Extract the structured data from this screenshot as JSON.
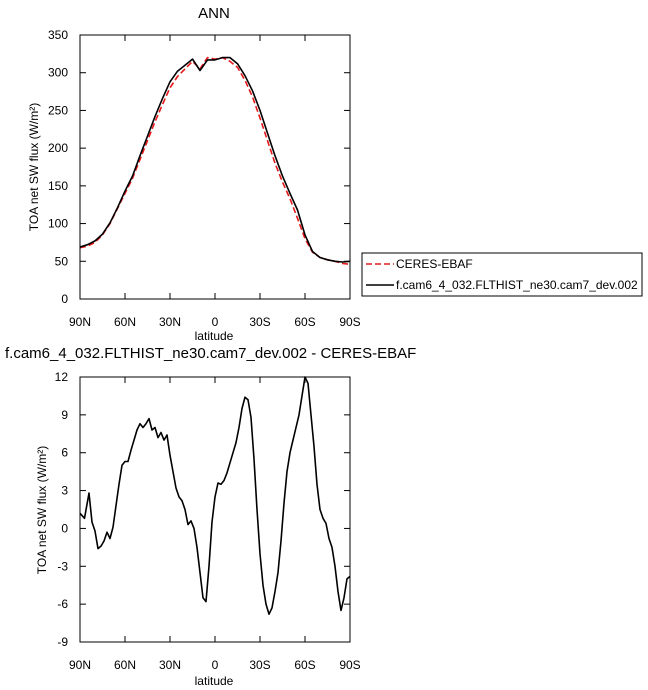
{
  "chart_data": [
    {
      "type": "line",
      "title": "ANN",
      "xlabel": "latitude",
      "ylabel": "TOA net SW flux (W/m²)",
      "xlim": [
        90,
        -90
      ],
      "ylim": [
        0,
        350
      ],
      "xticks": [
        90,
        60,
        30,
        0,
        -30,
        -60,
        -90
      ],
      "xtick_labels": [
        "90N",
        "60N",
        "30N",
        "0",
        "30S",
        "60S",
        "90S"
      ],
      "yticks": [
        0,
        50,
        100,
        150,
        200,
        250,
        300,
        350
      ],
      "ytick_labels": [
        "0",
        "50",
        "100",
        "150",
        "200",
        "250",
        "300",
        "350"
      ],
      "grid": false,
      "legend_position": "right",
      "x": [
        90,
        85,
        80,
        75,
        70,
        65,
        60,
        55,
        50,
        45,
        40,
        35,
        30,
        25,
        20,
        15,
        10,
        5,
        0,
        -5,
        -10,
        -15,
        -20,
        -25,
        -30,
        -35,
        -40,
        -45,
        -50,
        -55,
        -60,
        -65,
        -70,
        -75,
        -80,
        -85,
        -90
      ],
      "series": [
        {
          "name": "CERES-EBAF",
          "color": "#e41a1c",
          "dash": "dashed",
          "values": [
            68,
            70,
            75,
            85,
            100,
            120,
            140,
            160,
            185,
            210,
            235,
            258,
            280,
            295,
            305,
            315,
            305,
            320,
            318,
            320,
            315,
            307,
            290,
            268,
            240,
            210,
            180,
            155,
            133,
            107,
            80,
            62,
            55,
            52,
            50,
            47,
            46
          ]
        },
        {
          "name": "f.cam6_4_032.FLTHIST_ne30.cam7_dev.002",
          "color": "#000000",
          "dash": "solid",
          "values": [
            69,
            72,
            77,
            86,
            101,
            121,
            143,
            163,
            190,
            216,
            242,
            266,
            288,
            302,
            310,
            318,
            303,
            317,
            317,
            320,
            320,
            312,
            296,
            276,
            250,
            220,
            190,
            163,
            140,
            118,
            85,
            63,
            55,
            52,
            50,
            49,
            50
          ]
        }
      ]
    },
    {
      "type": "line",
      "title": "f.cam6_4_032.FLTHIST_ne30.cam7_dev.002 - CERES-EBAF",
      "xlabel": "latitude",
      "ylabel": "TOA net SW flux (W/m²)",
      "xlim": [
        90,
        -90
      ],
      "ylim": [
        -9,
        12
      ],
      "xticks": [
        90,
        60,
        30,
        0,
        -30,
        -60,
        -90
      ],
      "xtick_labels": [
        "90N",
        "60N",
        "30N",
        "0",
        "30S",
        "60S",
        "90S"
      ],
      "yticks": [
        12,
        9,
        6,
        3,
        0,
        -3,
        -6,
        -9
      ],
      "ytick_labels": [
        "12",
        "9",
        "6",
        "3",
        "0",
        "-3",
        "-6",
        "-9"
      ],
      "grid": false,
      "x": [
        90,
        87,
        84,
        82,
        80,
        78,
        76,
        74,
        72,
        70,
        68,
        66,
        64,
        62,
        60,
        58,
        56,
        54,
        52,
        50,
        48,
        46,
        44,
        42,
        40,
        38,
        36,
        34,
        32,
        30,
        28,
        26,
        24,
        22,
        20,
        18,
        16,
        14,
        12,
        10,
        8,
        6,
        4,
        2,
        0,
        -2,
        -4,
        -6,
        -8,
        -10,
        -12,
        -14,
        -16,
        -18,
        -20,
        -22,
        -24,
        -26,
        -28,
        -30,
        -32,
        -34,
        -36,
        -38,
        -40,
        -42,
        -44,
        -46,
        -48,
        -50,
        -52,
        -54,
        -56,
        -58,
        -60,
        -62,
        -64,
        -66,
        -68,
        -70,
        -72,
        -74,
        -76,
        -78,
        -80,
        -82,
        -84,
        -86,
        -88,
        -90
      ],
      "series": [
        {
          "name": "",
          "color": "#000000",
          "dash": "solid",
          "values": [
            1.2,
            0.8,
            2.8,
            0.5,
            -0.2,
            -1.6,
            -1.4,
            -1.0,
            -0.3,
            -0.8,
            0.1,
            1.8,
            3.5,
            5.0,
            5.3,
            5.3,
            6.2,
            7.0,
            7.8,
            8.3,
            8.0,
            8.3,
            8.7,
            7.8,
            8.0,
            7.2,
            7.6,
            7.0,
            7.4,
            5.8,
            4.5,
            3.2,
            2.5,
            2.2,
            1.5,
            0.3,
            0.6,
            0.0,
            -1.5,
            -3.5,
            -5.5,
            -5.8,
            -3.0,
            0.5,
            2.5,
            3.6,
            3.5,
            3.8,
            4.4,
            5.2,
            6.0,
            6.8,
            8.0,
            9.5,
            10.4,
            10.2,
            8.8,
            5.5,
            1.5,
            -2.0,
            -4.5,
            -6.0,
            -6.8,
            -6.3,
            -5.0,
            -3.5,
            -1.0,
            2.0,
            4.5,
            6.0,
            7.0,
            8.0,
            9.0,
            10.5,
            12.0,
            11.5,
            9.0,
            6.5,
            3.5,
            1.5,
            0.8,
            0.4,
            -0.8,
            -1.5,
            -3.0,
            -5.0,
            -6.5,
            -5.5,
            -4.0,
            -3.8
          ]
        }
      ]
    }
  ]
}
